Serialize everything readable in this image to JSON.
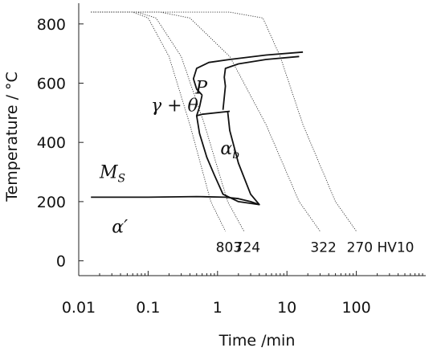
{
  "chart_data": {
    "type": "line",
    "title": "",
    "xlabel": "Time /min",
    "ylabel": "Temperature / °C",
    "x_scale": "log",
    "xlim": [
      0.01,
      1000
    ],
    "ylim": [
      -50,
      870
    ],
    "x_ticks": [
      {
        "value": 0.01,
        "label": "0.01"
      },
      {
        "value": 0.1,
        "label": "0.1"
      },
      {
        "value": 1,
        "label": "1"
      },
      {
        "value": 10,
        "label": "10"
      },
      {
        "value": 100,
        "label": "100"
      }
    ],
    "y_ticks": [
      {
        "value": 0,
        "label": "0"
      },
      {
        "value": 200,
        "label": "200"
      },
      {
        "value": 400,
        "label": "400"
      },
      {
        "value": 600,
        "label": "600"
      },
      {
        "value": 800,
        "label": "800"
      }
    ],
    "cooling_curves": [
      {
        "end_label": "803",
        "points": [
          [
            0.015,
            840
          ],
          [
            0.06,
            840
          ],
          [
            0.1,
            820
          ],
          [
            0.2,
            690
          ],
          [
            0.4,
            460
          ],
          [
            0.8,
            200
          ],
          [
            1.3,
            100
          ]
        ]
      },
      {
        "end_label": "724",
        "points": [
          [
            0.015,
            840
          ],
          [
            0.07,
            840
          ],
          [
            0.13,
            820
          ],
          [
            0.3,
            690
          ],
          [
            0.65,
            460
          ],
          [
            1.4,
            200
          ],
          [
            2.4,
            100
          ]
        ]
      },
      {
        "end_label": "322",
        "points": [
          [
            0.015,
            840
          ],
          [
            0.15,
            840
          ],
          [
            0.4,
            820
          ],
          [
            1.5,
            690
          ],
          [
            5,
            460
          ],
          [
            15,
            200
          ],
          [
            30,
            100
          ]
        ]
      },
      {
        "end_label": "270 HV10",
        "points": [
          [
            0.015,
            840
          ],
          [
            1.5,
            840
          ],
          [
            4.5,
            820
          ],
          [
            8,
            690
          ],
          [
            17,
            460
          ],
          [
            50,
            200
          ],
          [
            100,
            100
          ]
        ]
      }
    ],
    "transformation_lines": [
      {
        "name": "ferrite-pearlite start",
        "points": [
          [
            17,
            705
          ],
          [
            5,
            695
          ],
          [
            1.5,
            680
          ],
          [
            0.75,
            670
          ],
          [
            0.5,
            650
          ],
          [
            0.45,
            615
          ],
          [
            0.5,
            580
          ],
          [
            0.6,
            560
          ]
        ]
      },
      {
        "name": "ferrite-pearlite finish",
        "points": [
          [
            15,
            690
          ],
          [
            5,
            680
          ],
          [
            2,
            665
          ],
          [
            1.3,
            650
          ],
          [
            1.25,
            620
          ],
          [
            1.3,
            590
          ],
          [
            1.2,
            510
          ]
        ]
      },
      {
        "name": "bainite start",
        "points": [
          [
            0.6,
            560
          ],
          [
            0.55,
            520
          ],
          [
            0.5,
            490
          ],
          [
            0.6,
            495
          ],
          [
            1.5,
            505
          ]
        ]
      },
      {
        "name": "bainite envelope",
        "points": [
          [
            0.5,
            490
          ],
          [
            0.55,
            430
          ],
          [
            0.7,
            350
          ],
          [
            0.9,
            290
          ],
          [
            1.2,
            225
          ],
          [
            2,
            200
          ],
          [
            4,
            190
          ],
          [
            3,
            225
          ],
          [
            2,
            330
          ],
          [
            1.5,
            440
          ],
          [
            1.4,
            505
          ]
        ]
      },
      {
        "name": "martensite start",
        "points": [
          [
            0.015,
            215
          ],
          [
            0.1,
            215
          ],
          [
            0.5,
            217
          ],
          [
            1.3,
            215
          ],
          [
            2,
            210
          ],
          [
            3,
            200
          ],
          [
            4,
            190
          ]
        ]
      }
    ],
    "annotations": [
      {
        "text": "γ + θ",
        "x": 0.11,
        "y": 505
      },
      {
        "text": "P",
        "x": 0.48,
        "y": 565
      },
      {
        "text": "α",
        "sub": "b",
        "x": 1.1,
        "y": 360
      },
      {
        "text": "M",
        "sub": "S",
        "x": 0.02,
        "y": 280
      },
      {
        "text": "α′",
        "x": 0.03,
        "y": 95
      }
    ]
  }
}
